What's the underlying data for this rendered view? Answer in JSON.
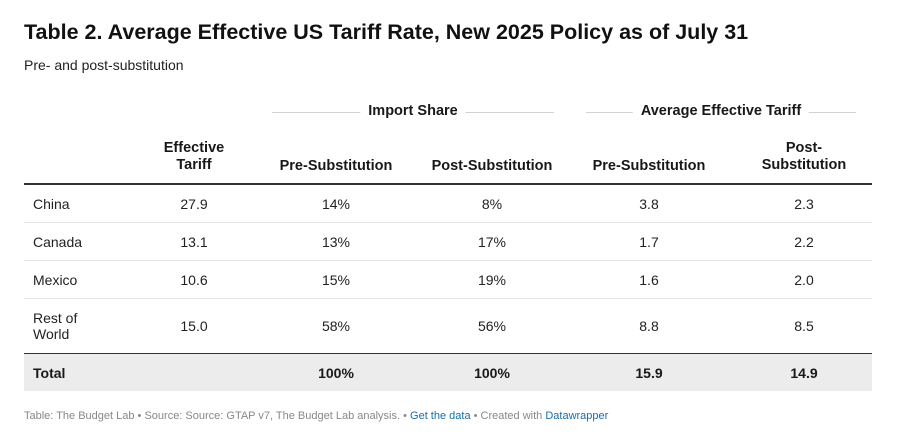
{
  "title": "Table 2. Average Effective US Tariff Rate, New 2025 Policy as of July 31",
  "subtitle": "Pre- and post-substitution",
  "groups": {
    "import_share": "Import Share",
    "average_effective_tariff": "Average Effective Tariff"
  },
  "columns": {
    "effective_tariff_line1": "Effective",
    "effective_tariff_line2": "Tariff",
    "import_pre": "Pre-Substitution",
    "import_post": "Post-Substitution",
    "tariff_pre": "Pre-Substitution",
    "tariff_post_line1": "Post-",
    "tariff_post_line2": "Substitution"
  },
  "chart_data": {
    "type": "table",
    "title": "Table 2. Average Effective US Tariff Rate, New 2025 Policy as of July 31",
    "subtitle": "Pre- and post-substitution",
    "column_groups": [
      {
        "name": "",
        "columns": [
          "Effective Tariff"
        ]
      },
      {
        "name": "Import Share",
        "columns": [
          "Pre-Substitution",
          "Post-Substitution"
        ]
      },
      {
        "name": "Average Effective Tariff",
        "columns": [
          "Pre-Substitution",
          "Post-Substitution"
        ]
      }
    ],
    "rows": [
      {
        "name_line1": "China",
        "name_line2": "",
        "effective_tariff": "27.9",
        "import_pre": "14%",
        "import_post": "8%",
        "tariff_pre": "3.8",
        "tariff_post": "2.3"
      },
      {
        "name_line1": "Canada",
        "name_line2": "",
        "effective_tariff": "13.1",
        "import_pre": "13%",
        "import_post": "17%",
        "tariff_pre": "1.7",
        "tariff_post": "2.2"
      },
      {
        "name_line1": "Mexico",
        "name_line2": "",
        "effective_tariff": "10.6",
        "import_pre": "15%",
        "import_post": "19%",
        "tariff_pre": "1.6",
        "tariff_post": "2.0"
      },
      {
        "name_line1": "Rest of",
        "name_line2": "World",
        "effective_tariff": "15.0",
        "import_pre": "58%",
        "import_post": "56%",
        "tariff_pre": "8.8",
        "tariff_post": "8.5"
      }
    ],
    "total": {
      "name": "Total",
      "effective_tariff": "",
      "import_pre": "100%",
      "import_post": "100%",
      "tariff_pre": "15.9",
      "tariff_post": "14.9"
    }
  },
  "footer": {
    "text": "Table: The Budget Lab • Source: Source: GTAP v7, The Budget Lab analysis. • ",
    "get_data": "Get the data",
    "mid": " • Created with ",
    "datawrapper": "Datawrapper"
  },
  "colors": {
    "link": "#1a6ea8",
    "total_bg": "#ececec",
    "rule": "#333333"
  }
}
